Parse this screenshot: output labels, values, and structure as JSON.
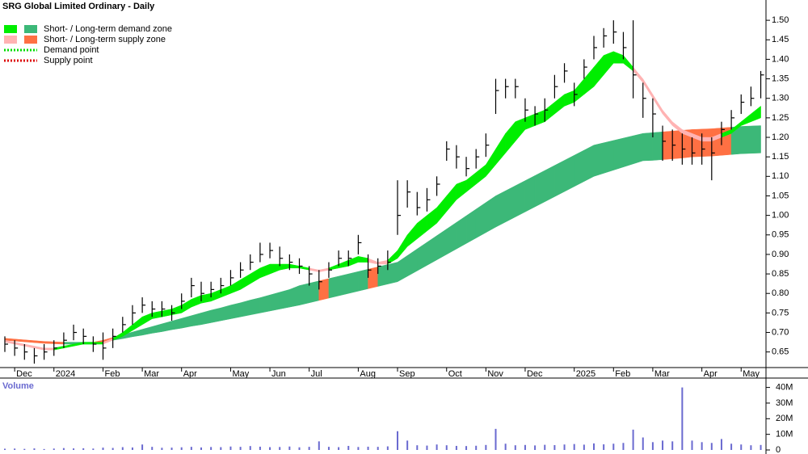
{
  "chart_data": [
    {
      "type": "ohlc",
      "title": "SRG Global Limited Ordinary - Daily",
      "legend": [
        {
          "label": "Short- / Long-term demand zone",
          "style": "box",
          "colors": [
            "#00ee00",
            "#3cb878"
          ]
        },
        {
          "label": "Short- / Long-term supply zone",
          "style": "box",
          "colors": [
            "#ffb3b3",
            "#ff7043"
          ]
        },
        {
          "label": "Demand point",
          "style": "dotted",
          "colors": [
            "#00dd00"
          ]
        },
        {
          "label": "Supply point",
          "style": "dotted",
          "colors": [
            "#dd0000"
          ]
        }
      ],
      "categories": [
        null,
        "Dec",
        null,
        null,
        null,
        "2024",
        null,
        null,
        null,
        null,
        "Feb",
        null,
        null,
        null,
        "Mar",
        null,
        null,
        null,
        "Apr",
        null,
        null,
        null,
        null,
        "May",
        null,
        null,
        null,
        "Jun",
        null,
        null,
        null,
        "Jul",
        null,
        null,
        null,
        null,
        "Aug",
        null,
        null,
        null,
        "Sep",
        null,
        null,
        null,
        null,
        "Oct",
        null,
        null,
        null,
        "Nov",
        null,
        null,
        null,
        "Dec",
        null,
        null,
        null,
        null,
        "2025",
        null,
        null,
        null,
        "Feb",
        null,
        null,
        null,
        "Mar",
        null,
        null,
        null,
        null,
        "Apr",
        null,
        null,
        null,
        "May",
        null,
        null
      ],
      "high": [
        0.69,
        0.68,
        0.67,
        0.66,
        0.67,
        0.68,
        0.7,
        0.72,
        0.71,
        0.69,
        0.7,
        0.71,
        0.74,
        0.77,
        0.79,
        0.78,
        0.78,
        0.77,
        0.8,
        0.84,
        0.83,
        0.83,
        0.84,
        0.86,
        0.88,
        0.9,
        0.93,
        0.93,
        0.92,
        0.9,
        0.89,
        0.87,
        0.86,
        0.88,
        0.91,
        0.91,
        0.95,
        0.9,
        0.89,
        0.91,
        1.09,
        1.09,
        1.06,
        1.07,
        1.1,
        1.19,
        1.18,
        1.15,
        1.17,
        1.21,
        1.35,
        1.35,
        1.35,
        1.3,
        1.28,
        1.3,
        1.36,
        1.39,
        1.34,
        1.4,
        1.46,
        1.48,
        1.5,
        1.47,
        1.5,
        1.34,
        1.3,
        1.23,
        1.22,
        1.21,
        1.2,
        1.21,
        1.2,
        1.24,
        1.27,
        1.31,
        1.33,
        1.37
      ],
      "low": [
        0.65,
        0.64,
        0.63,
        0.62,
        0.63,
        0.64,
        0.66,
        0.68,
        0.67,
        0.65,
        0.63,
        0.66,
        0.7,
        0.72,
        0.75,
        0.74,
        0.74,
        0.73,
        0.76,
        0.79,
        0.78,
        0.79,
        0.8,
        0.82,
        0.84,
        0.86,
        0.88,
        0.89,
        0.87,
        0.86,
        0.85,
        0.82,
        0.81,
        0.84,
        0.87,
        0.87,
        0.9,
        0.84,
        0.85,
        0.86,
        0.95,
        1.02,
        1.0,
        1.01,
        1.05,
        1.14,
        1.12,
        1.1,
        1.12,
        1.15,
        1.26,
        1.3,
        1.3,
        1.24,
        1.23,
        1.24,
        1.3,
        1.34,
        1.28,
        1.35,
        1.4,
        1.43,
        1.44,
        1.4,
        1.3,
        1.25,
        1.2,
        1.14,
        1.14,
        1.13,
        1.13,
        1.13,
        1.09,
        1.18,
        1.22,
        1.26,
        1.28,
        1.3
      ],
      "close": [
        0.67,
        0.66,
        0.65,
        0.64,
        0.65,
        0.66,
        0.68,
        0.7,
        0.69,
        0.67,
        0.66,
        0.69,
        0.72,
        0.75,
        0.77,
        0.76,
        0.76,
        0.75,
        0.78,
        0.82,
        0.8,
        0.81,
        0.82,
        0.84,
        0.86,
        0.88,
        0.9,
        0.91,
        0.89,
        0.88,
        0.87,
        0.85,
        0.83,
        0.86,
        0.89,
        0.89,
        0.93,
        0.86,
        0.87,
        0.88,
        1.0,
        1.06,
        1.02,
        1.04,
        1.08,
        1.17,
        1.15,
        1.12,
        1.15,
        1.18,
        1.32,
        1.33,
        1.33,
        1.27,
        1.26,
        1.27,
        1.33,
        1.37,
        1.31,
        1.38,
        1.43,
        1.46,
        1.47,
        1.43,
        1.36,
        1.3,
        1.26,
        1.19,
        1.18,
        1.17,
        1.16,
        1.17,
        1.16,
        1.22,
        1.25,
        1.29,
        1.3,
        1.36
      ],
      "short_zone": {
        "upper": [
          0.68,
          0.675,
          0.67,
          0.665,
          0.66,
          0.66,
          0.665,
          0.67,
          0.675,
          0.675,
          0.675,
          0.685,
          0.7,
          0.72,
          0.74,
          0.75,
          0.755,
          0.76,
          0.77,
          0.785,
          0.795,
          0.8,
          0.81,
          0.82,
          0.835,
          0.85,
          0.865,
          0.875,
          0.875,
          0.875,
          0.87,
          0.865,
          0.86,
          0.865,
          0.875,
          0.885,
          0.895,
          0.89,
          0.88,
          0.885,
          0.91,
          0.95,
          0.98,
          1.0,
          1.02,
          1.05,
          1.08,
          1.09,
          1.11,
          1.13,
          1.17,
          1.21,
          1.24,
          1.25,
          1.26,
          1.27,
          1.29,
          1.31,
          1.32,
          1.35,
          1.38,
          1.41,
          1.42,
          1.41,
          1.38,
          1.35,
          1.31,
          1.27,
          1.24,
          1.22,
          1.21,
          1.2,
          1.2,
          1.21,
          1.22,
          1.24,
          1.26,
          1.28
        ],
        "lower": [
          0.675,
          0.67,
          0.665,
          0.66,
          0.655,
          0.655,
          0.66,
          0.665,
          0.67,
          0.67,
          0.67,
          0.68,
          0.69,
          0.705,
          0.72,
          0.735,
          0.74,
          0.745,
          0.75,
          0.765,
          0.775,
          0.78,
          0.79,
          0.8,
          0.81,
          0.825,
          0.84,
          0.85,
          0.86,
          0.865,
          0.865,
          0.86,
          0.855,
          0.86,
          0.865,
          0.87,
          0.88,
          0.88,
          0.875,
          0.875,
          0.89,
          0.92,
          0.94,
          0.96,
          0.98,
          1.01,
          1.04,
          1.06,
          1.08,
          1.1,
          1.13,
          1.16,
          1.19,
          1.22,
          1.23,
          1.24,
          1.26,
          1.28,
          1.29,
          1.31,
          1.33,
          1.36,
          1.39,
          1.39,
          1.37,
          1.34,
          1.3,
          1.26,
          1.23,
          1.21,
          1.2,
          1.19,
          1.19,
          1.2,
          1.21,
          1.23,
          1.24,
          1.25
        ]
      },
      "long_zone": {
        "upper": [
          0.685,
          0.683,
          0.681,
          0.679,
          0.677,
          0.676,
          0.675,
          0.675,
          0.675,
          0.675,
          0.68,
          0.687,
          0.694,
          0.701,
          0.708,
          0.715,
          0.722,
          0.729,
          0.736,
          0.743,
          0.75,
          0.757,
          0.763,
          0.77,
          0.776,
          0.783,
          0.789,
          0.796,
          0.803,
          0.81,
          0.82,
          0.826,
          0.832,
          0.838,
          0.844,
          0.85,
          0.856,
          0.862,
          0.868,
          0.874,
          0.88,
          0.897,
          0.914,
          0.931,
          0.948,
          0.965,
          0.982,
          0.999,
          1.016,
          1.033,
          1.05,
          1.063,
          1.076,
          1.089,
          1.102,
          1.115,
          1.128,
          1.141,
          1.154,
          1.167,
          1.18,
          1.186,
          1.192,
          1.198,
          1.204,
          1.21,
          1.212,
          1.214,
          1.216,
          1.218,
          1.22,
          1.221,
          1.222,
          1.224,
          1.226,
          1.228,
          1.229,
          1.23
        ],
        "lower": [
          0.68,
          0.678,
          0.676,
          0.674,
          0.672,
          0.671,
          0.67,
          0.67,
          0.67,
          0.67,
          0.675,
          0.68,
          0.684,
          0.689,
          0.693,
          0.698,
          0.702,
          0.707,
          0.711,
          0.716,
          0.72,
          0.725,
          0.73,
          0.735,
          0.74,
          0.745,
          0.75,
          0.755,
          0.76,
          0.765,
          0.77,
          0.776,
          0.782,
          0.788,
          0.794,
          0.8,
          0.806,
          0.812,
          0.818,
          0.824,
          0.83,
          0.844,
          0.858,
          0.872,
          0.886,
          0.9,
          0.914,
          0.928,
          0.942,
          0.956,
          0.97,
          0.983,
          0.996,
          1.009,
          1.022,
          1.035,
          1.048,
          1.061,
          1.074,
          1.087,
          1.1,
          1.108,
          1.116,
          1.124,
          1.132,
          1.14,
          1.141,
          1.143,
          1.145,
          1.147,
          1.15,
          1.151,
          1.152,
          1.154,
          1.156,
          1.158,
          1.159,
          1.16
        ]
      },
      "color": "#000000",
      "ylim": [
        0.61,
        1.552
      ],
      "yticks": [
        0.65,
        {
          "value": 0.7,
          "label": "0.70"
        },
        0.75,
        {
          "value": 0.8,
          "label": "0.80"
        },
        0.85,
        {
          "value": 0.9,
          "label": "0.90"
        },
        0.95,
        {
          "value": 1.0,
          "label": "1.00"
        },
        1.05,
        {
          "value": 1.1,
          "label": "1.10"
        },
        1.15,
        {
          "value": 1.2,
          "label": "1.20"
        },
        1.25,
        {
          "value": 1.3,
          "label": "1.30"
        },
        1.35,
        {
          "value": 1.4,
          "label": "1.40"
        },
        1.45,
        {
          "value": 1.5,
          "label": "1.50"
        }
      ]
    },
    {
      "type": "bar",
      "title": "Volume",
      "values": [
        800000,
        900000,
        700000,
        1000000,
        600000,
        900000,
        1200000,
        1000000,
        1100000,
        900000,
        1500000,
        1300000,
        1800000,
        1600000,
        3500000,
        2000000,
        1400000,
        1500000,
        1700000,
        2000000,
        1600000,
        1900000,
        1800000,
        2200000,
        2000000,
        2500000,
        2100000,
        1800000,
        1900000,
        2200000,
        1700000,
        2000000,
        5500000,
        2000000,
        1800000,
        2600000,
        1900000,
        2100000,
        2000000,
        2300000,
        12000000,
        6000000,
        3000000,
        2800000,
        3500000,
        3000000,
        2600000,
        2500000,
        2700000,
        3200000,
        13500000,
        4000000,
        3000000,
        3200000,
        2900000,
        3300000,
        3100000,
        3500000,
        3800000,
        3400000,
        4200000,
        3600000,
        4000000,
        4500000,
        13000000,
        8000000,
        5000000,
        6000000,
        5500000,
        40000000,
        6000000,
        5000000,
        4500000,
        7000000,
        4000000,
        3500000,
        3000000,
        3200000
      ],
      "color": "#6a6ad0",
      "ylim": [
        0,
        46000000
      ],
      "yticks": [
        0,
        {
          "value": 10000000,
          "label": "10M"
        },
        {
          "value": 20000000,
          "label": "20M"
        },
        {
          "value": 30000000,
          "label": "30M"
        },
        {
          "value": 40000000,
          "label": "40M"
        }
      ]
    }
  ]
}
